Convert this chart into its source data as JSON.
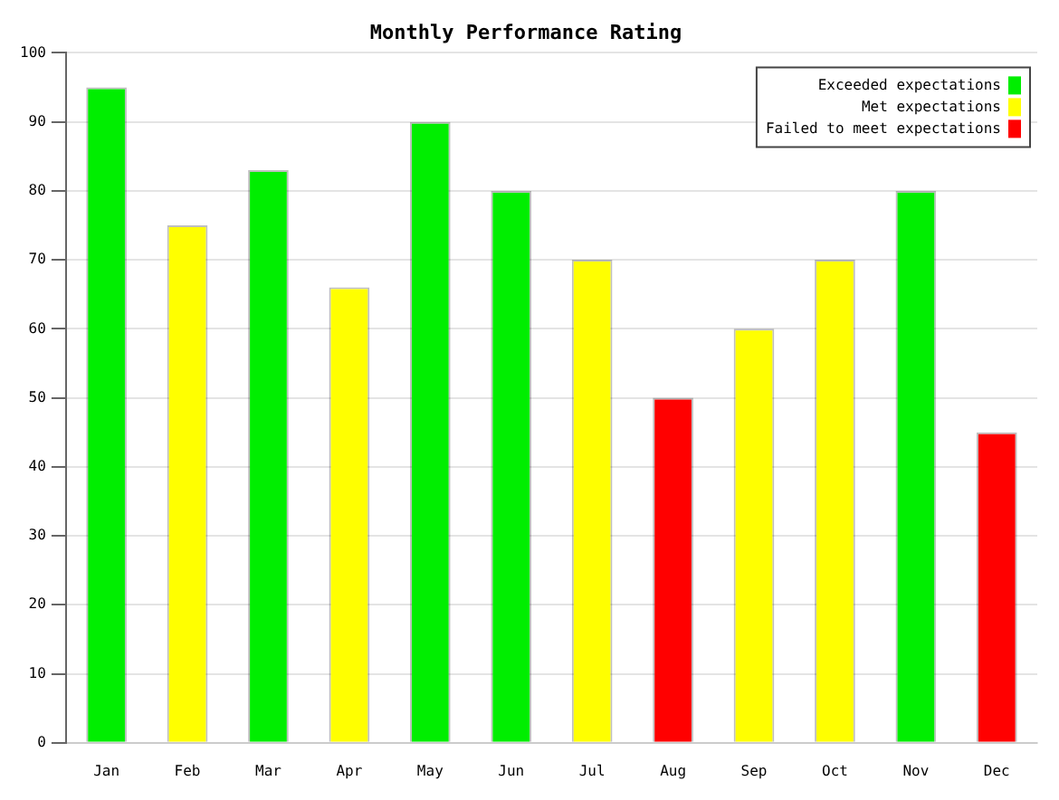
{
  "chart_data": {
    "type": "bar",
    "title": "Monthly Performance Rating",
    "categories": [
      "Jan",
      "Feb",
      "Mar",
      "Apr",
      "May",
      "Jun",
      "Jul",
      "Aug",
      "Sep",
      "Oct",
      "Nov",
      "Dec"
    ],
    "series": [
      {
        "name": "Exceeded expectations",
        "color": "#00ee00",
        "values": [
          95,
          null,
          83,
          null,
          90,
          80,
          null,
          null,
          null,
          null,
          80,
          null
        ]
      },
      {
        "name": "Met expectations",
        "color": "#ffff00",
        "values": [
          null,
          75,
          null,
          66,
          null,
          null,
          70,
          null,
          60,
          70,
          null,
          null
        ]
      },
      {
        "name": "Failed to meet expectations",
        "color": "#ff0000",
        "values": [
          null,
          null,
          null,
          null,
          null,
          null,
          null,
          50,
          null,
          null,
          null,
          45
        ]
      }
    ],
    "ylim": [
      0,
      100
    ],
    "yticks": [
      0,
      10,
      20,
      30,
      40,
      50,
      60,
      70,
      80,
      90,
      100
    ],
    "grid": "y",
    "legend": "top right"
  }
}
